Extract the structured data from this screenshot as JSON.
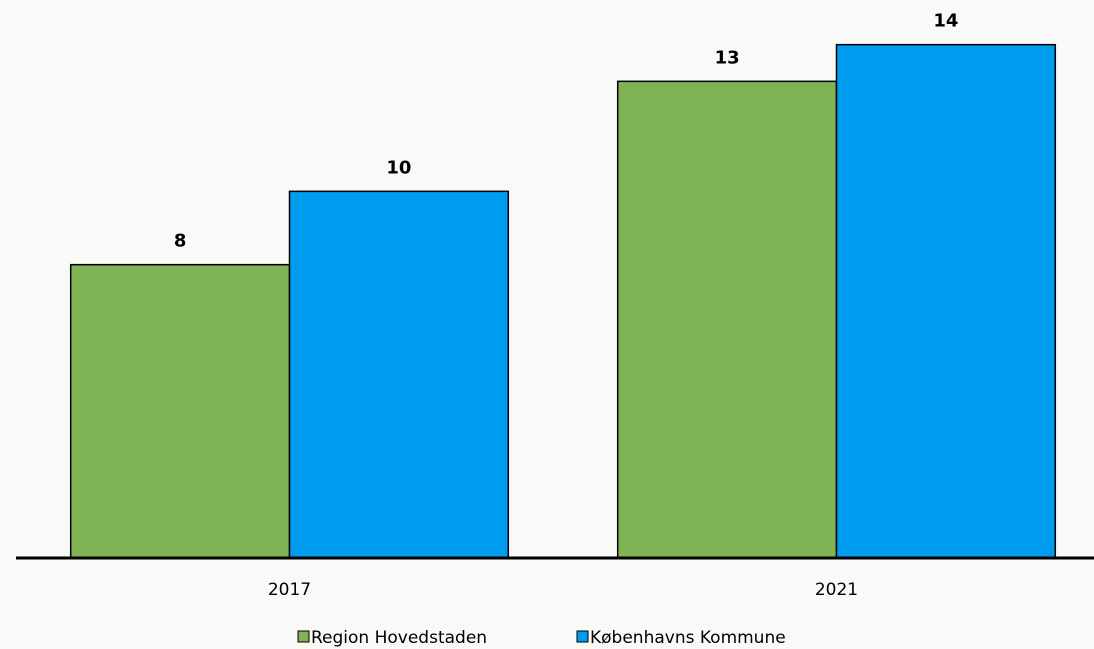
{
  "chart_data": {
    "type": "bar",
    "categories": [
      "2017",
      "2021"
    ],
    "series": [
      {
        "name": "Region Hovedstaden",
        "color": "#7fb356",
        "values": [
          8,
          13
        ]
      },
      {
        "name": "Københavns Kommune",
        "color": "#009cef",
        "values": [
          10,
          14
        ]
      }
    ],
    "ylim": [
      0,
      15
    ],
    "legend": "bottom"
  }
}
